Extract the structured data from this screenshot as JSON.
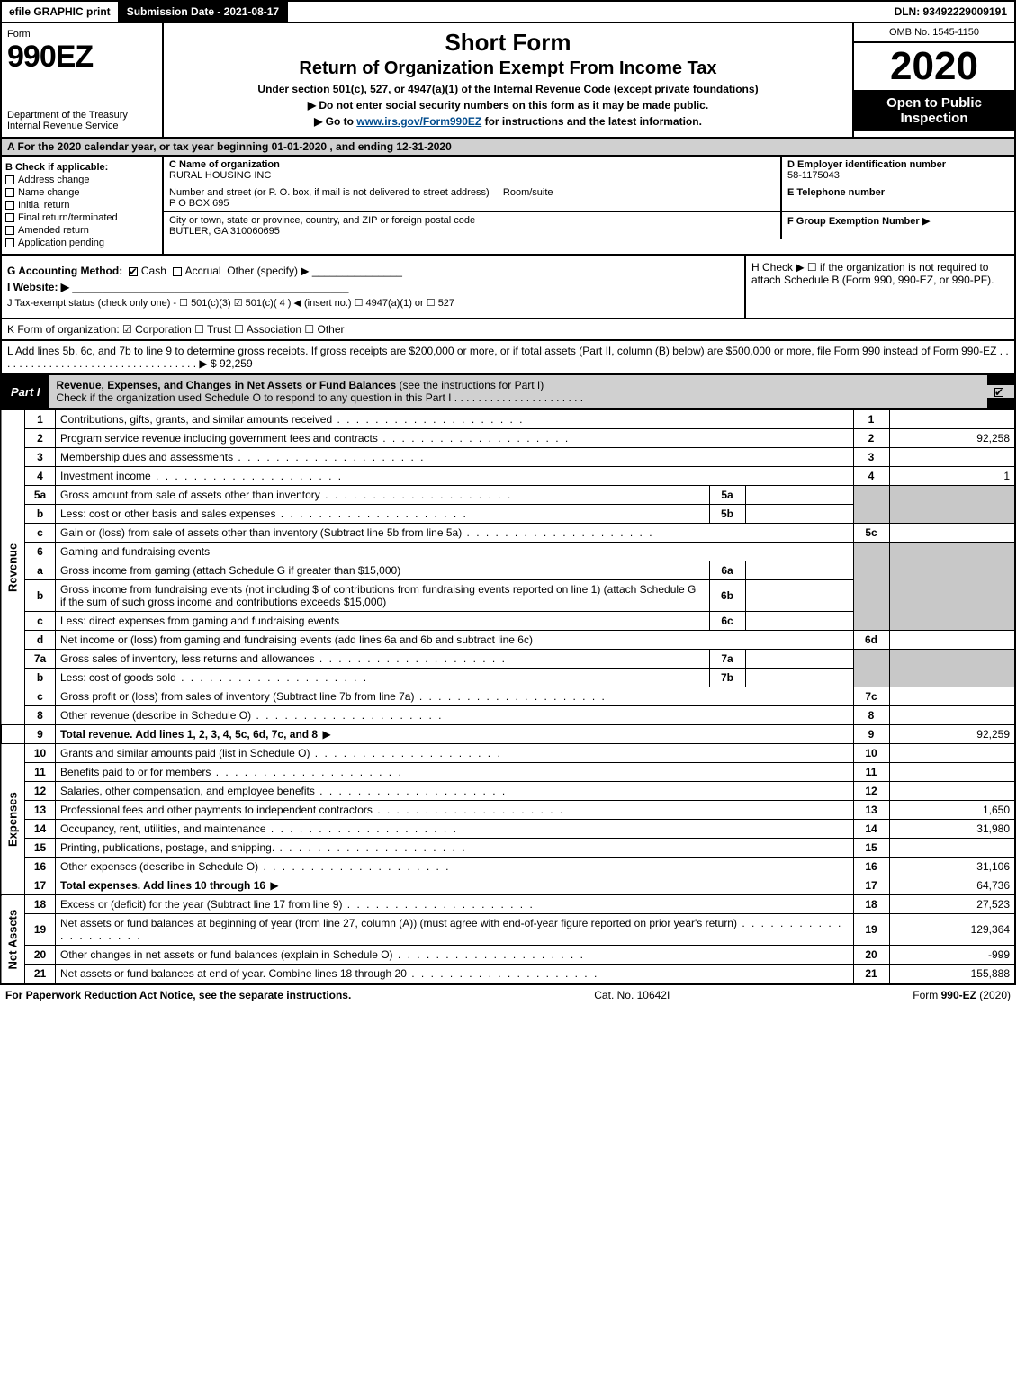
{
  "topbar": {
    "efile": "efile GRAPHIC print",
    "submission_label": "Submission Date - 2021-08-17",
    "dln": "DLN: 93492229009191"
  },
  "header": {
    "form_word": "Form",
    "form_number": "990EZ",
    "dept1": "Department of the Treasury",
    "dept2": "Internal Revenue Service",
    "title1": "Short Form",
    "title2": "Return of Organization Exempt From Income Tax",
    "subtitle": "Under section 501(c), 527, or 4947(a)(1) of the Internal Revenue Code (except private foundations)",
    "warn": "▶ Do not enter social security numbers on this form as it may be made public.",
    "goto_pre": "▶ Go to ",
    "goto_link": "www.irs.gov/Form990EZ",
    "goto_post": " for instructions and the latest information.",
    "omb": "OMB No. 1545-1150",
    "year": "2020",
    "inspection": "Open to Public Inspection"
  },
  "section_a": "A  For the 2020 calendar year, or tax year beginning 01-01-2020 , and ending 12-31-2020",
  "col_b": {
    "title": "B  Check if applicable:",
    "opts": [
      "Address change",
      "Name change",
      "Initial return",
      "Final return/terminated",
      "Amended return",
      "Application pending"
    ]
  },
  "col_c": {
    "c_label": "C Name of organization",
    "c_value": "RURAL HOUSING INC",
    "addr_label": "Number and street (or P. O. box, if mail is not delivered to street address)",
    "addr_value": "P O BOX 695",
    "room_label": "Room/suite",
    "city_label": "City or town, state or province, country, and ZIP or foreign postal code",
    "city_value": "BUTLER, GA  310060695"
  },
  "col_def": {
    "d_label": "D Employer identification number",
    "d_value": "58-1175043",
    "e_label": "E Telephone number",
    "e_value": "",
    "f_label": "F Group Exemption Number  ▶",
    "f_value": ""
  },
  "g": {
    "label": "G Accounting Method:",
    "cash": "Cash",
    "accrual": "Accrual",
    "other": "Other (specify) ▶"
  },
  "h": "H  Check ▶  ☐  if the organization is not required to attach Schedule B (Form 990, 990-EZ, or 990-PF).",
  "i": {
    "label": "I Website: ▶",
    "value": ""
  },
  "j": "J Tax-exempt status (check only one) -  ☐ 501(c)(3)  ☑ 501(c)( 4 ) ◀ (insert no.)  ☐ 4947(a)(1) or  ☐ 527",
  "k": "K Form of organization:   ☑ Corporation   ☐ Trust   ☐ Association   ☐ Other",
  "l": {
    "text": "L Add lines 5b, 6c, and 7b to line 9 to determine gross receipts. If gross receipts are $200,000 or more, or if total assets (Part II, column (B) below) are $500,000 or more, file Form 990 instead of Form 990-EZ  . . . . . . . . . . . . . . . . . . . . . . . . . . . . . . . . . . ▶ $ ",
    "value": "92,259"
  },
  "part1": {
    "label": "Part I",
    "title": "Revenue, Expenses, and Changes in Net Assets or Fund Balances",
    "sub": " (see the instructions for Part I)",
    "check_line": "Check if the organization used Schedule O to respond to any question in this Part I . . . . . . . . . . . . . . . . . . . . . ."
  },
  "sides": {
    "rev": "Revenue",
    "exp": "Expenses",
    "na": "Net Assets"
  },
  "lines": {
    "l1": {
      "n": "1",
      "d": "Contributions, gifts, grants, and similar amounts received",
      "a": ""
    },
    "l2": {
      "n": "2",
      "d": "Program service revenue including government fees and contracts",
      "a": "92,258"
    },
    "l3": {
      "n": "3",
      "d": "Membership dues and assessments",
      "a": ""
    },
    "l4": {
      "n": "4",
      "d": "Investment income",
      "a": "1"
    },
    "l5a": {
      "n": "5a",
      "d": "Gross amount from sale of assets other than inventory",
      "sn": "5a",
      "sv": ""
    },
    "l5b": {
      "n": "b",
      "d": "Less: cost or other basis and sales expenses",
      "sn": "5b",
      "sv": ""
    },
    "l5c": {
      "n": "c",
      "d": "Gain or (loss) from sale of assets other than inventory (Subtract line 5b from line 5a)",
      "ln": "5c",
      "a": ""
    },
    "l6": {
      "n": "6",
      "d": "Gaming and fundraising events"
    },
    "l6a": {
      "n": "a",
      "d": "Gross income from gaming (attach Schedule G if greater than $15,000)",
      "sn": "6a",
      "sv": ""
    },
    "l6b": {
      "n": "b",
      "d": "Gross income from fundraising events (not including $                     of contributions from fundraising events reported on line 1) (attach Schedule G if the sum of such gross income and contributions exceeds $15,000)",
      "sn": "6b",
      "sv": ""
    },
    "l6c": {
      "n": "c",
      "d": "Less: direct expenses from gaming and fundraising events",
      "sn": "6c",
      "sv": ""
    },
    "l6d": {
      "n": "d",
      "d": "Net income or (loss) from gaming and fundraising events (add lines 6a and 6b and subtract line 6c)",
      "ln": "6d",
      "a": ""
    },
    "l7a": {
      "n": "7a",
      "d": "Gross sales of inventory, less returns and allowances",
      "sn": "7a",
      "sv": ""
    },
    "l7b": {
      "n": "b",
      "d": "Less: cost of goods sold",
      "sn": "7b",
      "sv": ""
    },
    "l7c": {
      "n": "c",
      "d": "Gross profit or (loss) from sales of inventory (Subtract line 7b from line 7a)",
      "ln": "7c",
      "a": ""
    },
    "l8": {
      "n": "8",
      "d": "Other revenue (describe in Schedule O)",
      "a": ""
    },
    "l9": {
      "n": "9",
      "d": "Total revenue. Add lines 1, 2, 3, 4, 5c, 6d, 7c, and 8",
      "a": "92,259",
      "bold": true,
      "arrow": true
    },
    "l10": {
      "n": "10",
      "d": "Grants and similar amounts paid (list in Schedule O)",
      "a": ""
    },
    "l11": {
      "n": "11",
      "d": "Benefits paid to or for members",
      "a": ""
    },
    "l12": {
      "n": "12",
      "d": "Salaries, other compensation, and employee benefits",
      "a": ""
    },
    "l13": {
      "n": "13",
      "d": "Professional fees and other payments to independent contractors",
      "a": "1,650"
    },
    "l14": {
      "n": "14",
      "d": "Occupancy, rent, utilities, and maintenance",
      "a": "31,980"
    },
    "l15": {
      "n": "15",
      "d": "Printing, publications, postage, and shipping.",
      "a": ""
    },
    "l16": {
      "n": "16",
      "d": "Other expenses (describe in Schedule O)",
      "a": "31,106"
    },
    "l17": {
      "n": "17",
      "d": "Total expenses. Add lines 10 through 16",
      "a": "64,736",
      "bold": true,
      "arrow": true
    },
    "l18": {
      "n": "18",
      "d": "Excess or (deficit) for the year (Subtract line 17 from line 9)",
      "a": "27,523"
    },
    "l19": {
      "n": "19",
      "d": "Net assets or fund balances at beginning of year (from line 27, column (A)) (must agree with end-of-year figure reported on prior year's return)",
      "a": "129,364"
    },
    "l20": {
      "n": "20",
      "d": "Other changes in net assets or fund balances (explain in Schedule O)",
      "a": "-999"
    },
    "l21": {
      "n": "21",
      "d": "Net assets or fund balances at end of year. Combine lines 18 through 20",
      "a": "155,888"
    }
  },
  "footer": {
    "left": "For Paperwork Reduction Act Notice, see the separate instructions.",
    "mid": "Cat. No. 10642I",
    "right": "Form 990-EZ (2020)"
  },
  "colors": {
    "black": "#000000",
    "shade": "#c8c8c8",
    "header_shade": "#d0d0d0",
    "link": "#004b8d"
  }
}
